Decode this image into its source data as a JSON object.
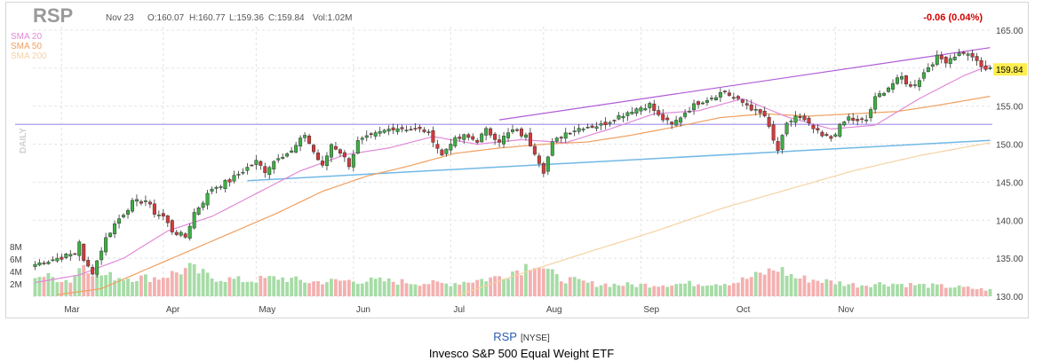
{
  "caption": {
    "ticker": "RSP",
    "exchange": "[NYSE]",
    "name": "Invesco S&P 500 Equal Weight ETF"
  },
  "chart_data": {
    "type": "candlestick",
    "symbol": "RSP",
    "header": {
      "date": "Nov 23",
      "open": "O:160.07",
      "high": "H:160.77",
      "low": "L:159.36",
      "close": "C:159.84",
      "volume": "Vol:1.02M",
      "change": "-0.06 (0.04%)",
      "last_price": "159.84"
    },
    "period_label": "DAILY",
    "legend": [
      {
        "name": "SMA 20",
        "color": "#e08ad8"
      },
      {
        "name": "SMA 50",
        "color": "#f0a060"
      },
      {
        "name": "SMA 200",
        "color": "#f5d2a4"
      }
    ],
    "colors": {
      "up": "#3cb043",
      "down": "#d43a3a",
      "vol_up": "#a6dca6",
      "vol_down": "#f4b0b0",
      "support_line": "#72b8e6",
      "resistance_line": "#b9a8ef",
      "channel_line": "#b05ad8",
      "price_tag": "#ffee50",
      "change": "#d10000"
    },
    "y_axis": {
      "min": 130,
      "max": 165,
      "ticks": [
        "165.00",
        "160.00",
        "155.00",
        "150.00",
        "145.00",
        "140.00",
        "135.00",
        "130.00"
      ]
    },
    "volume_axis": {
      "max_millions": 10,
      "ticks": [
        "8M",
        "6M",
        "4M",
        "2M"
      ]
    },
    "x_axis": {
      "labels": [
        {
          "label": "Mar",
          "index": 14
        },
        {
          "label": "Apr",
          "index": 37
        },
        {
          "label": "May",
          "index": 58
        },
        {
          "label": "Jun",
          "index": 80
        },
        {
          "label": "Jul",
          "index": 102
        },
        {
          "label": "Aug",
          "index": 123
        },
        {
          "label": "Sep",
          "index": 145
        },
        {
          "label": "Oct",
          "index": 166
        },
        {
          "label": "Nov",
          "index": 189
        }
      ]
    },
    "grid": true,
    "close_waypoints": [
      [
        0,
        134.2
      ],
      [
        5,
        135.0
      ],
      [
        9,
        135.6
      ],
      [
        10,
        137.3
      ],
      [
        11,
        134.5
      ],
      [
        13,
        133.2
      ],
      [
        16,
        137.6
      ],
      [
        18,
        139.5
      ],
      [
        22,
        142.3
      ],
      [
        25,
        142.6
      ],
      [
        27,
        141.0
      ],
      [
        29,
        140.5
      ],
      [
        31,
        138.6
      ],
      [
        34,
        137.8
      ],
      [
        36,
        141.0
      ],
      [
        38,
        142.5
      ],
      [
        40,
        144.2
      ],
      [
        44,
        145.2
      ],
      [
        47,
        146.5
      ],
      [
        50,
        147.7
      ],
      [
        52,
        146.5
      ],
      [
        55,
        148.4
      ],
      [
        58,
        149.0
      ],
      [
        60,
        150.5
      ],
      [
        61,
        151.3
      ],
      [
        63,
        149.0
      ],
      [
        65,
        147.0
      ],
      [
        67,
        150.0
      ],
      [
        69,
        149.0
      ],
      [
        71,
        147.3
      ],
      [
        73,
        150.3
      ],
      [
        75,
        150.8
      ],
      [
        78,
        151.5
      ],
      [
        81,
        152.2
      ],
      [
        85,
        152.0
      ],
      [
        88,
        151.8
      ],
      [
        90,
        150.6
      ],
      [
        92,
        148.5
      ],
      [
        94,
        150.3
      ],
      [
        97,
        151.0
      ],
      [
        100,
        150.5
      ],
      [
        102,
        151.8
      ],
      [
        105,
        150.5
      ],
      [
        108,
        151.8
      ],
      [
        111,
        151.0
      ],
      [
        113,
        149.0
      ],
      [
        115,
        146.5
      ],
      [
        117,
        150.1
      ],
      [
        120,
        151.5
      ],
      [
        124,
        152.3
      ],
      [
        128,
        152.5
      ],
      [
        131,
        153.4
      ],
      [
        135,
        154.5
      ],
      [
        139,
        155.2
      ],
      [
        141,
        153.7
      ],
      [
        144,
        152.5
      ],
      [
        147,
        154.2
      ],
      [
        150,
        155.5
      ],
      [
        153,
        156.2
      ],
      [
        156,
        157.0
      ],
      [
        158,
        156.0
      ],
      [
        161,
        155.2
      ],
      [
        163,
        154.3
      ],
      [
        165,
        153.7
      ],
      [
        167,
        150.4
      ],
      [
        168,
        149.2
      ],
      [
        170,
        152.5
      ],
      [
        172,
        153.7
      ],
      [
        174,
        153.0
      ],
      [
        176,
        152.0
      ],
      [
        178,
        151.0
      ],
      [
        180,
        150.8
      ],
      [
        182,
        152.3
      ],
      [
        184,
        153.5
      ],
      [
        186,
        152.9
      ],
      [
        188,
        153.2
      ],
      [
        190,
        156.0
      ],
      [
        192,
        157.0
      ],
      [
        194,
        158.0
      ],
      [
        196,
        158.8
      ],
      [
        198,
        157.5
      ],
      [
        200,
        158.6
      ],
      [
        202,
        160.2
      ],
      [
        204,
        161.4
      ],
      [
        206,
        161.0
      ],
      [
        208,
        161.7
      ],
      [
        210,
        162.1
      ],
      [
        211,
        161.7
      ],
      [
        212,
        161.6
      ],
      [
        213,
        160.7
      ],
      [
        214,
        160.1
      ],
      [
        215,
        159.9
      ],
      [
        216,
        159.84
      ]
    ],
    "volume_waypoints_millions": [
      [
        0,
        3.5
      ],
      [
        8,
        2.5
      ],
      [
        11,
        5.5
      ],
      [
        14,
        3.5
      ],
      [
        20,
        3.0
      ],
      [
        28,
        3.0
      ],
      [
        35,
        4.5
      ],
      [
        40,
        3.0
      ],
      [
        48,
        2.5
      ],
      [
        55,
        3.0
      ],
      [
        62,
        2.3
      ],
      [
        70,
        2.5
      ],
      [
        78,
        2.5
      ],
      [
        86,
        2.2
      ],
      [
        93,
        2.0
      ],
      [
        100,
        2.6
      ],
      [
        104,
        3.0
      ],
      [
        110,
        4.5
      ],
      [
        113,
        5.7
      ],
      [
        118,
        3.0
      ],
      [
        126,
        2.0
      ],
      [
        136,
        1.8
      ],
      [
        146,
        2.0
      ],
      [
        158,
        2.2
      ],
      [
        164,
        3.5
      ],
      [
        168,
        4.5
      ],
      [
        172,
        3.0
      ],
      [
        178,
        2.5
      ],
      [
        186,
        1.8
      ],
      [
        192,
        2.1
      ],
      [
        200,
        1.8
      ],
      [
        208,
        1.5
      ],
      [
        216,
        1.02
      ]
    ],
    "sma20_waypoints": [
      [
        0,
        131.8
      ],
      [
        10,
        132.8
      ],
      [
        20,
        135.0
      ],
      [
        30,
        138.6
      ],
      [
        40,
        140.5
      ],
      [
        50,
        143.5
      ],
      [
        60,
        146.5
      ],
      [
        70,
        148.6
      ],
      [
        80,
        149.5
      ],
      [
        90,
        151.0
      ],
      [
        100,
        150.0
      ],
      [
        110,
        150.6
      ],
      [
        120,
        150.2
      ],
      [
        130,
        152.0
      ],
      [
        140,
        154.0
      ],
      [
        150,
        154.4
      ],
      [
        160,
        156.0
      ],
      [
        170,
        153.6
      ],
      [
        180,
        152.0
      ],
      [
        190,
        152.5
      ],
      [
        200,
        156.0
      ],
      [
        210,
        159.0
      ],
      [
        216,
        160.4
      ]
    ],
    "sma50_waypoints": [
      [
        5,
        130.2
      ],
      [
        15,
        131.0
      ],
      [
        25,
        133.5
      ],
      [
        35,
        136.0
      ],
      [
        45,
        138.5
      ],
      [
        55,
        141.0
      ],
      [
        65,
        143.8
      ],
      [
        75,
        145.8
      ],
      [
        85,
        147.2
      ],
      [
        95,
        148.8
      ],
      [
        105,
        149.5
      ],
      [
        115,
        150.0
      ],
      [
        125,
        150.3
      ],
      [
        135,
        151.2
      ],
      [
        145,
        152.3
      ],
      [
        155,
        153.5
      ],
      [
        165,
        154.0
      ],
      [
        175,
        153.7
      ],
      [
        185,
        154.0
      ],
      [
        195,
        154.3
      ],
      [
        205,
        155.2
      ],
      [
        216,
        156.3
      ]
    ],
    "sma200_waypoints": [
      [
        95,
        130.0
      ],
      [
        110,
        133.0
      ],
      [
        125,
        135.8
      ],
      [
        140,
        138.5
      ],
      [
        155,
        141.5
      ],
      [
        170,
        144.0
      ],
      [
        185,
        146.5
      ],
      [
        200,
        148.5
      ],
      [
        216,
        150.2
      ]
    ],
    "trendlines": {
      "horizontal": [
        152.6
      ],
      "support": [
        [
          48,
          145.2
        ],
        [
          216,
          150.5
        ]
      ],
      "channel": [
        [
          105,
          153.2
        ],
        [
          216,
          162.7
        ]
      ]
    }
  }
}
